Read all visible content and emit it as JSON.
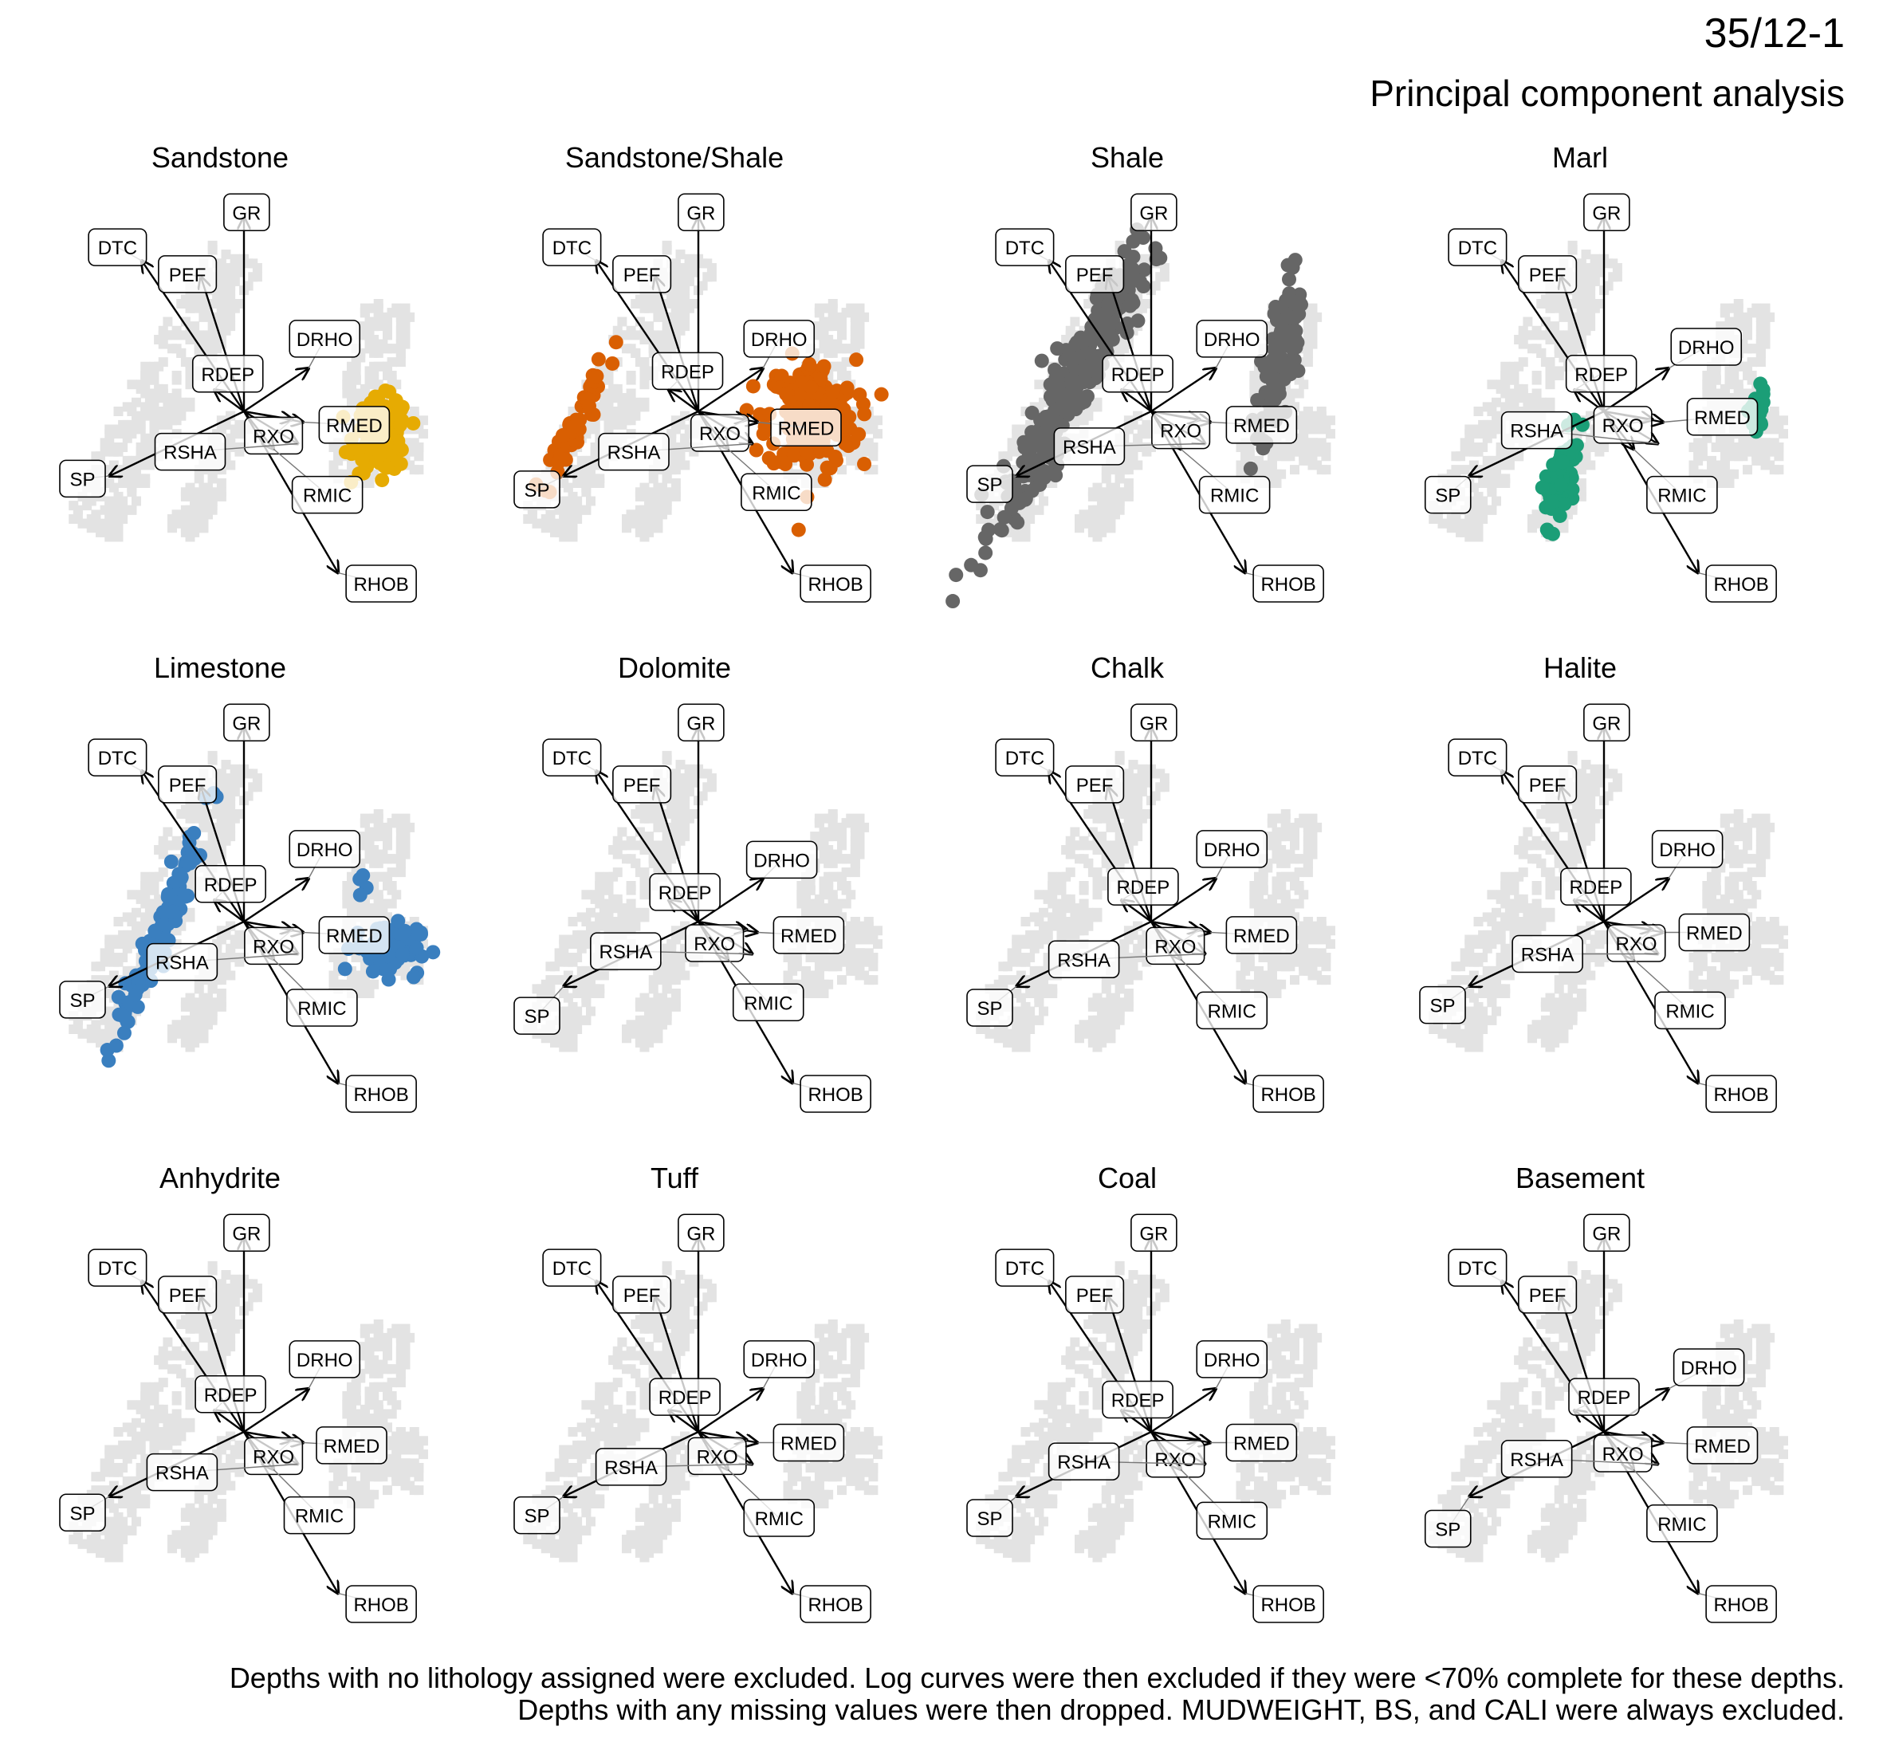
{
  "title": "35/12-1",
  "subtitle": "Principal component analysis",
  "caption": [
    "Depths with no lithology assigned were excluded. Log curves were then excluded if they were <70% complete for these depths.",
    "Depths with any missing values were then dropped. MUDWEIGHT, BS, and CALI were always excluded."
  ],
  "colors": {
    "background_points": "#e3e3e3",
    "arrow": "#000000",
    "Sandstone": "#e6ab02",
    "Sandstone/Shale": "#d95f02",
    "Shale": "#666666",
    "Marl": "#1b9e77",
    "Limestone": "#3a7fbf"
  },
  "chart_data": {
    "type": "scatter",
    "subtype": "PCA biplot small multiples",
    "xlim": [
      -4,
      4
    ],
    "ylim": [
      -4,
      4
    ],
    "loadings": [
      {
        "name": "GR",
        "x": 0.0,
        "y": 3.6
      },
      {
        "name": "DTC",
        "x": -1.9,
        "y": 2.8
      },
      {
        "name": "PEF",
        "x": -0.8,
        "y": 2.5
      },
      {
        "name": "DRHO",
        "x": 1.2,
        "y": 0.8
      },
      {
        "name": "RDEP",
        "x": -0.55,
        "y": 0.4
      },
      {
        "name": "RMED",
        "x": 1.1,
        "y": -0.2
      },
      {
        "name": "RXO",
        "x": 0.9,
        "y": -0.15
      },
      {
        "name": "RSHA",
        "x": 1.0,
        "y": -0.6
      },
      {
        "name": "SP",
        "x": -2.5,
        "y": -1.2
      },
      {
        "name": "RMIC",
        "x": 0.55,
        "y": -0.7
      },
      {
        "name": "RHOB",
        "x": 1.75,
        "y": -3.0
      }
    ],
    "panels": [
      {
        "name": "Sandstone",
        "labels": {
          "GR": [
            0.05,
            3.7
          ],
          "DTC": [
            -2.35,
            3.05
          ],
          "PEF": [
            -1.05,
            2.55
          ],
          "DRHO": [
            1.5,
            1.35
          ],
          "RDEP": [
            -0.3,
            0.7
          ],
          "RMED": [
            2.05,
            -0.25
          ],
          "RXO": [
            0.55,
            -0.45
          ],
          "RSHA": [
            -1.0,
            -0.75
          ],
          "SP": [
            -3.0,
            -1.25
          ],
          "RMIC": [
            1.55,
            -1.55
          ],
          "RHOB": [
            2.55,
            -3.2
          ]
        },
        "clusters": [
          {
            "cx": 2.55,
            "cy": -0.45,
            "rx": 0.45,
            "ry": 0.62,
            "n": 140
          }
        ]
      },
      {
        "name": "Sandstone/Shale",
        "labels": {
          "GR": [
            0.05,
            3.7
          ],
          "DTC": [
            -2.35,
            3.05
          ],
          "PEF": [
            -1.05,
            2.55
          ],
          "DRHO": [
            1.5,
            1.35
          ],
          "RDEP": [
            -0.2,
            0.75
          ],
          "RMED": [
            2.0,
            -0.3
          ],
          "RXO": [
            0.4,
            -0.4
          ],
          "RSHA": [
            -1.2,
            -0.75
          ],
          "SP": [
            -3.0,
            -1.45
          ],
          "RMIC": [
            1.45,
            -1.5
          ],
          "RHOB": [
            2.55,
            -3.2
          ]
        },
        "clusters": [
          {
            "cx": 2.1,
            "cy": -0.1,
            "rx": 0.75,
            "ry": 0.95,
            "n": 200
          },
          {
            "cx": -2.3,
            "cy": -0.2,
            "rx": 0.2,
            "ry": 1.3,
            "n": 50,
            "angle": 25
          }
        ]
      },
      {
        "name": "Shale",
        "labels": {
          "GR": [
            0.05,
            3.7
          ],
          "DTC": [
            -2.35,
            3.05
          ],
          "PEF": [
            -1.05,
            2.55
          ],
          "DRHO": [
            1.5,
            1.35
          ],
          "RDEP": [
            -0.25,
            0.7
          ],
          "RMED": [
            2.05,
            -0.25
          ],
          "RXO": [
            0.55,
            -0.35
          ],
          "RSHA": [
            -1.15,
            -0.65
          ],
          "SP": [
            -3.0,
            -1.35
          ],
          "RMIC": [
            1.55,
            -1.55
          ],
          "RHOB": [
            2.55,
            -3.2
          ]
        },
        "clusters": [
          {
            "cx": -1.5,
            "cy": 0.4,
            "rx": 0.35,
            "ry": 2.6,
            "n": 320,
            "angle": 28
          },
          {
            "cx": 2.4,
            "cy": 1.05,
            "rx": 0.25,
            "ry": 1.35,
            "n": 110,
            "angle": 10
          }
        ]
      },
      {
        "name": "Marl",
        "labels": {
          "GR": [
            0.05,
            3.7
          ],
          "DTC": [
            -2.35,
            3.05
          ],
          "PEF": [
            -1.05,
            2.55
          ],
          "DRHO": [
            1.9,
            1.2
          ],
          "RDEP": [
            -0.05,
            0.7
          ],
          "RMED": [
            2.2,
            -0.1
          ],
          "RXO": [
            0.35,
            -0.25
          ],
          "RSHA": [
            -1.25,
            -0.35
          ],
          "SP": [
            -2.9,
            -1.55
          ],
          "RMIC": [
            1.45,
            -1.55
          ],
          "RHOB": [
            2.55,
            -3.2
          ]
        },
        "clusters": [
          {
            "cx": -0.8,
            "cy": -1.25,
            "rx": 0.2,
            "ry": 0.75,
            "n": 80,
            "angle": 15
          },
          {
            "cx": 2.85,
            "cy": 0.0,
            "rx": 0.12,
            "ry": 0.32,
            "n": 40
          }
        ]
      },
      {
        "name": "Limestone",
        "labels": {
          "GR": [
            0.05,
            3.7
          ],
          "DTC": [
            -2.35,
            3.05
          ],
          "PEF": [
            -1.05,
            2.55
          ],
          "DRHO": [
            1.5,
            1.35
          ],
          "RDEP": [
            -0.25,
            0.7
          ],
          "RMED": [
            2.05,
            -0.25
          ],
          "RXO": [
            0.55,
            -0.45
          ],
          "RSHA": [
            -1.15,
            -0.75
          ],
          "SP": [
            -3.0,
            -1.45
          ],
          "RMIC": [
            1.45,
            -1.6
          ],
          "RHOB": [
            2.55,
            -3.2
          ]
        },
        "clusters": [
          {
            "cx": -1.6,
            "cy": -0.3,
            "rx": 0.18,
            "ry": 2.0,
            "n": 110,
            "angle": 22
          },
          {
            "cx": 2.65,
            "cy": -0.5,
            "rx": 0.55,
            "ry": 0.45,
            "n": 90
          },
          {
            "cx": 2.2,
            "cy": 0.8,
            "rx": 0.05,
            "ry": 0.3,
            "n": 4
          }
        ]
      },
      {
        "name": "Dolomite",
        "labels": {
          "GR": [
            0.05,
            3.7
          ],
          "DTC": [
            -2.35,
            3.05
          ],
          "PEF": [
            -1.05,
            2.55
          ],
          "DRHO": [
            1.55,
            1.15
          ],
          "RDEP": [
            -0.25,
            0.55
          ],
          "RMED": [
            2.05,
            -0.25
          ],
          "RXO": [
            0.3,
            -0.4
          ],
          "RSHA": [
            -1.35,
            -0.55
          ],
          "SP": [
            -3.0,
            -1.75
          ],
          "RMIC": [
            1.3,
            -1.5
          ],
          "RHOB": [
            2.55,
            -3.2
          ]
        },
        "clusters": []
      },
      {
        "name": "Chalk",
        "labels": {
          "GR": [
            0.05,
            3.7
          ],
          "DTC": [
            -2.35,
            3.05
          ],
          "PEF": [
            -1.05,
            2.55
          ],
          "DRHO": [
            1.5,
            1.35
          ],
          "RDEP": [
            -0.15,
            0.65
          ],
          "RMED": [
            2.05,
            -0.25
          ],
          "RXO": [
            0.45,
            -0.45
          ],
          "RSHA": [
            -1.25,
            -0.7
          ],
          "SP": [
            -3.0,
            -1.6
          ],
          "RMIC": [
            1.5,
            -1.65
          ],
          "RHOB": [
            2.55,
            -3.2
          ]
        },
        "clusters": []
      },
      {
        "name": "Halite",
        "labels": {
          "GR": [
            0.05,
            3.7
          ],
          "DTC": [
            -2.35,
            3.05
          ],
          "PEF": [
            -1.05,
            2.55
          ],
          "DRHO": [
            1.55,
            1.35
          ],
          "RDEP": [
            -0.15,
            0.65
          ],
          "RMED": [
            2.05,
            -0.2
          ],
          "RXO": [
            0.6,
            -0.4
          ],
          "RSHA": [
            -1.05,
            -0.6
          ],
          "SP": [
            -3.0,
            -1.55
          ],
          "RMIC": [
            1.6,
            -1.65
          ],
          "RHOB": [
            2.55,
            -3.2
          ]
        },
        "clusters": []
      },
      {
        "name": "Anhydrite",
        "labels": {
          "GR": [
            0.05,
            3.7
          ],
          "DTC": [
            -2.35,
            3.05
          ],
          "PEF": [
            -1.05,
            2.55
          ],
          "DRHO": [
            1.5,
            1.35
          ],
          "RDEP": [
            -0.25,
            0.7
          ],
          "RMED": [
            2.0,
            -0.25
          ],
          "RXO": [
            0.55,
            -0.45
          ],
          "RSHA": [
            -1.15,
            -0.75
          ],
          "SP": [
            -3.0,
            -1.5
          ],
          "RMIC": [
            1.4,
            -1.55
          ],
          "RHOB": [
            2.55,
            -3.2
          ]
        },
        "clusters": []
      },
      {
        "name": "Tuff",
        "labels": {
          "GR": [
            0.05,
            3.7
          ],
          "DTC": [
            -2.35,
            3.05
          ],
          "PEF": [
            -1.05,
            2.55
          ],
          "DRHO": [
            1.5,
            1.35
          ],
          "RDEP": [
            -0.25,
            0.65
          ],
          "RMED": [
            2.05,
            -0.2
          ],
          "RXO": [
            0.35,
            -0.45
          ],
          "RSHA": [
            -1.25,
            -0.65
          ],
          "SP": [
            -3.0,
            -1.55
          ],
          "RMIC": [
            1.5,
            -1.6
          ],
          "RHOB": [
            2.55,
            -3.2
          ]
        },
        "clusters": []
      },
      {
        "name": "Coal",
        "labels": {
          "GR": [
            0.05,
            3.7
          ],
          "DTC": [
            -2.35,
            3.05
          ],
          "PEF": [
            -1.05,
            2.55
          ],
          "DRHO": [
            1.5,
            1.35
          ],
          "RDEP": [
            -0.25,
            0.6
          ],
          "RMED": [
            2.05,
            -0.2
          ],
          "RXO": [
            0.45,
            -0.5
          ],
          "RSHA": [
            -1.25,
            -0.55
          ],
          "SP": [
            -3.0,
            -1.6
          ],
          "RMIC": [
            1.5,
            -1.65
          ],
          "RHOB": [
            2.55,
            -3.2
          ]
        },
        "clusters": []
      },
      {
        "name": "Basement",
        "labels": {
          "GR": [
            0.05,
            3.7
          ],
          "DTC": [
            -2.35,
            3.05
          ],
          "PEF": [
            -1.05,
            2.55
          ],
          "DRHO": [
            1.95,
            1.2
          ],
          "RDEP": [
            0.0,
            0.65
          ],
          "RMED": [
            2.2,
            -0.25
          ],
          "RXO": [
            0.35,
            -0.4
          ],
          "RSHA": [
            -1.25,
            -0.5
          ],
          "SP": [
            -2.9,
            -1.8
          ],
          "RMIC": [
            1.45,
            -1.7
          ],
          "RHOB": [
            2.55,
            -3.2
          ]
        },
        "clusters": []
      }
    ]
  }
}
